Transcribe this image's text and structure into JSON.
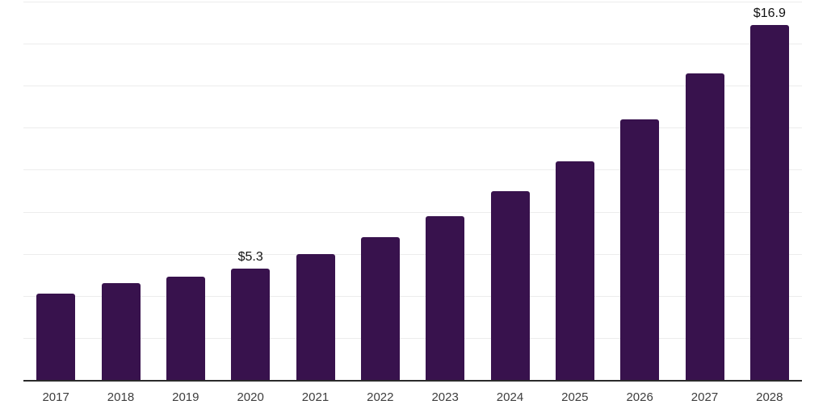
{
  "chart_data": {
    "type": "bar",
    "title": "",
    "xlabel": "",
    "ylabel": "",
    "categories": [
      "2017",
      "2018",
      "2019",
      "2020",
      "2021",
      "2022",
      "2023",
      "2024",
      "2025",
      "2026",
      "2027",
      "2028"
    ],
    "values": [
      4.1,
      4.6,
      4.9,
      5.3,
      6.0,
      6.8,
      7.8,
      9.0,
      10.4,
      12.4,
      14.6,
      16.9
    ],
    "annotations": [
      {
        "category": "2020",
        "text": "$5.3"
      },
      {
        "category": "2028",
        "text": "$16.9"
      }
    ],
    "ylim": [
      0,
      18
    ],
    "gridline_step": 2,
    "grid": "horizontal gridlines only, no y-axis tick labels, x baseline drawn",
    "legend": "none",
    "colors": {
      "bar": "#38124D",
      "gridline": "#ECECEC",
      "axis_line": "#2B2B2B",
      "tick_label": "#3D3D3D",
      "data_label": "#111111",
      "background": "#FFFFFF"
    }
  }
}
